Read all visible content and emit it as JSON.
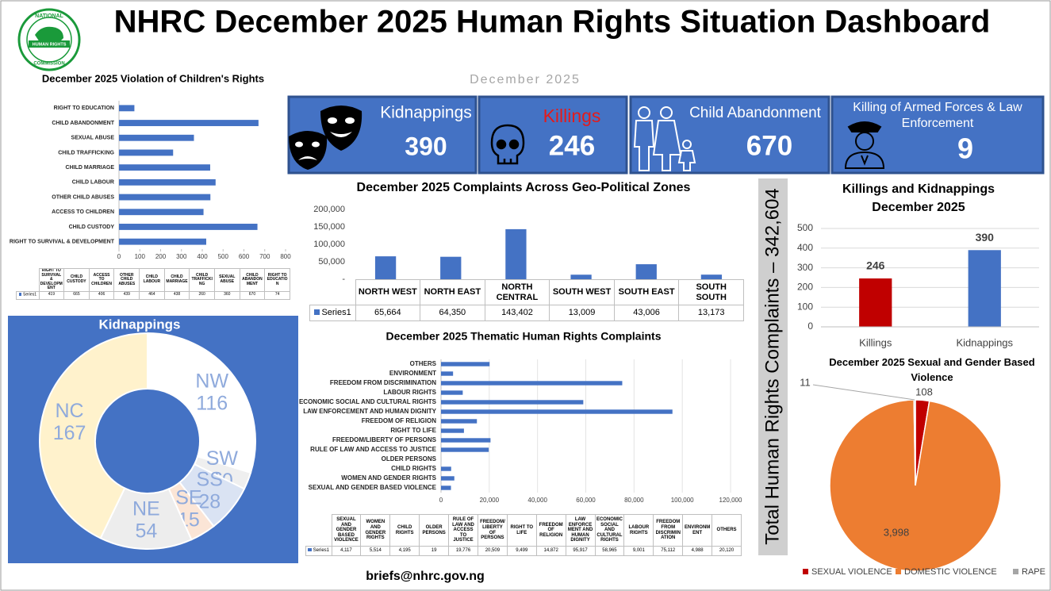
{
  "header": {
    "title": "NHRC December 2025 Human Rights Situation Dashboard",
    "subtitle": "December 2025",
    "logo": [
      "NATIONAL",
      "HUMAN RIGHTS",
      "COMMISSION"
    ]
  },
  "kpis": [
    {
      "label": "Kidnappings",
      "value": 390
    },
    {
      "label": "Killings",
      "value": 246
    },
    {
      "label": "Child Abandonment",
      "value": 670
    },
    {
      "label": "Killing of Armed Forces & Law Enforcement",
      "value": 9
    }
  ],
  "total_label": "Total Human Rights Complaints – 342,604",
  "footer": "briefs@nhrc.gov.ng",
  "chart_data": [
    {
      "type": "hbar",
      "title": "December 2025 Violation of Children's Rights",
      "categories": [
        "RIGHT TO SURVIVAL & DEVELOPMENT",
        "CHILD CUSTODY",
        "ACCESS TO CHILDREN",
        "OTHER CHILD ABUSES",
        "CHILD LABOUR",
        "CHILD MARRIAGE",
        "CHILD TRAFFICKING",
        "SEXUAL ABUSE",
        "CHILD ABANDONMENT",
        "RIGHT TO EDUCATION"
      ],
      "series": [
        {
          "name": "Series1",
          "color": "#4472c4",
          "values": [
            419,
            665,
            406,
            439,
            464,
            438,
            260,
            360,
            670,
            74
          ]
        }
      ],
      "xlim": [
        0,
        800
      ],
      "xticks": [
        0,
        100,
        200,
        300,
        400,
        500,
        600,
        700,
        800
      ],
      "grid": false
    },
    {
      "type": "bar",
      "title": "December 2025 Complaints Across Geo-Political Zones",
      "categories": [
        "NORTH WEST",
        "NORTH EAST",
        "NORTH CENTRAL",
        "SOUTH WEST",
        "SOUTH EAST",
        "SOUTH SOUTH"
      ],
      "series": [
        {
          "name": "Series1",
          "color": "#4472c4",
          "values": [
            65664,
            64350,
            143402,
            13009,
            43006,
            13173
          ],
          "value_labels": [
            "65,664",
            "64,350",
            "143,402",
            "13,009",
            "43,006",
            "13,173"
          ]
        }
      ],
      "ylim": [
        0,
        200000
      ],
      "yticks": [
        {
          "value": 0,
          "label": "-"
        },
        {
          "value": 50000,
          "label": "50,000"
        },
        {
          "value": 100000,
          "label": "100,000"
        },
        {
          "value": 150000,
          "label": "150,000"
        },
        {
          "value": 200000,
          "label": "200,000"
        }
      ],
      "grid": false
    },
    {
      "type": "hbar",
      "title": "December 2025 Thematic Human Rights Complaints",
      "categories": [
        "SEXUAL AND GENDER BASED VIOLENCE",
        "WOMEN AND GENDER RIGHTS",
        "CHILD RIGHTS",
        "OLDER PERSONS",
        "RULE OF LAW AND ACCESS TO JUSTICE",
        "FREEDOM/LIBERTY OF PERSONS",
        "RIGHT TO LIFE",
        "FREEDOM OF RELIGION",
        "LAW ENFORCEMENT AND HUMAN DIGNITY",
        "ECONOMIC SOCIAL AND CULTURAL RIGHTS",
        "LABOUR RIGHTS",
        "FREEDOM FROM DISCRIMINATION",
        "ENVIRONMENT",
        "OTHERS"
      ],
      "series": [
        {
          "name": "Series1",
          "color": "#4472c4",
          "values": [
            4117,
            5514,
            4195,
            19,
            19776,
            20509,
            9499,
            14872,
            95917,
            58965,
            9001,
            75112,
            4988,
            20120
          ],
          "value_labels": [
            "4,117",
            "5,514",
            "4,195",
            "19",
            "19,776",
            "20,509",
            "9,499",
            "14,872",
            "95,917",
            "58,965",
            "9,001",
            "75,112",
            "4,988",
            "20,120"
          ]
        }
      ],
      "xlim": [
        0,
        120000
      ],
      "xticks": [
        0,
        {
          "value": 20000,
          "label": "20,000"
        },
        {
          "value": 40000,
          "label": "40,000"
        },
        {
          "value": 60000,
          "label": "60,000"
        },
        {
          "value": 80000,
          "label": "80,000"
        },
        {
          "value": 100000,
          "label": "100,000"
        },
        {
          "value": 120000,
          "label": "120,000"
        }
      ],
      "grid": true
    },
    {
      "type": "bar",
      "title": "Killings and Kidnappings December 2025",
      "categories": [
        "Killings",
        "Kidnappings"
      ],
      "values": [
        246,
        390
      ],
      "colors": [
        "#c00000",
        "#4472c4"
      ],
      "ylim": [
        0,
        500
      ],
      "yticks": [
        0,
        100,
        200,
        300,
        400,
        500
      ],
      "grid": true
    },
    {
      "type": "donut",
      "title": "Kidnappings",
      "categories": [
        "NW",
        "SW",
        "SS",
        "SE",
        "NE",
        "NC"
      ],
      "values": [
        116,
        10,
        28,
        15,
        54,
        167
      ],
      "colors": [
        "#ffffff",
        "#efefef",
        "#dae3f3",
        "#fbe5d6",
        "#ededed",
        "#fff2cc"
      ]
    },
    {
      "type": "pie",
      "title": "December 2025 Sexual and Gender Based Violence",
      "categories": [
        "SEXUAL VIOLENCE",
        "DOMESTIC VIOLENCE",
        "RAPE"
      ],
      "values": [
        108,
        3998,
        11
      ],
      "value_labels": [
        "108",
        "3,998",
        "11"
      ],
      "colors": [
        "#c00000",
        "#ed7d31",
        "#a5a5a5"
      ],
      "legend": "bottom"
    }
  ]
}
